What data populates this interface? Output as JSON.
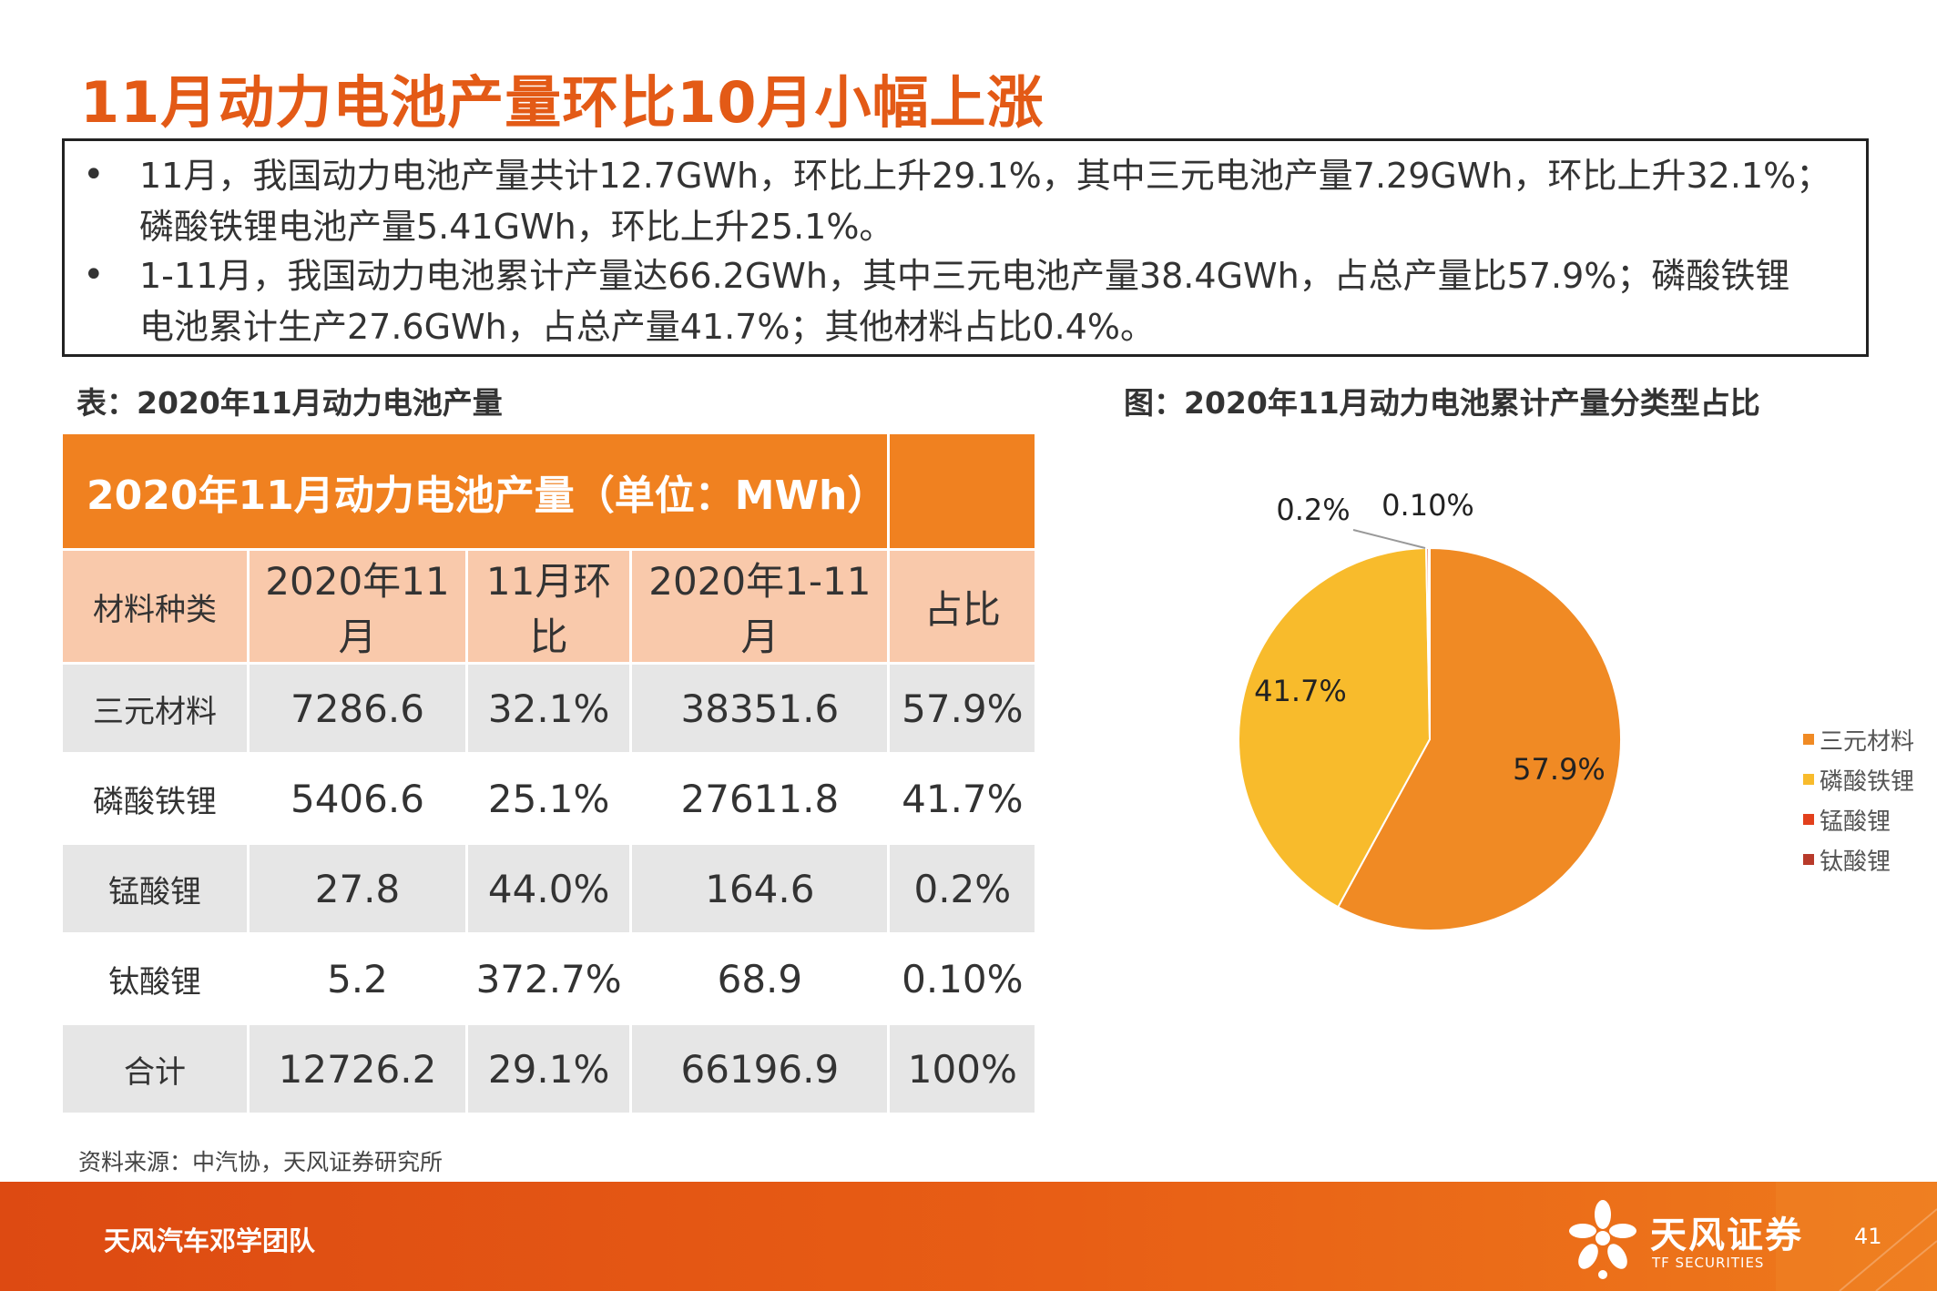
{
  "title": "11月动力电池产量环比10月小幅上涨",
  "summary": {
    "bullet_symbol": "•",
    "items": [
      {
        "line1": "11月，我国动力电池产量共计12.7GWh，环比上升29.1%，其中三元电池产量7.29GWh，环比上升32.1%；",
        "line2": "磷酸铁锂电池产量5.41GWh，环比上升25.1%。"
      },
      {
        "line1": "1-11月，我国动力电池累计产量达66.2GWh，其中三元电池产量38.4GWh，占总产量比57.9%；磷酸铁锂",
        "line2": "电池累计生产27.6GWh，占总产量41.7%；其他材料占比0.4%。"
      }
    ]
  },
  "table_caption": "表：2020年11月动力电池产量",
  "chart_caption": "图：2020年11月动力电池累计产量分类型占比",
  "table": {
    "title": "2020年11月动力电池产量（单位：MWh）",
    "headers": [
      "材料种类",
      "2020年11月",
      "11月环比",
      "2020年1-11月",
      "占比"
    ],
    "rows": [
      [
        "三元材料",
        "7286.6",
        "32.1%",
        "38351.6",
        "57.9%"
      ],
      [
        "磷酸铁锂",
        "5406.6",
        "25.1%",
        "27611.8",
        "41.7%"
      ],
      [
        "锰酸锂",
        "27.8",
        "44.0%",
        "164.6",
        "0.2%"
      ],
      [
        "钛酸锂",
        "5.2",
        "372.7%",
        "68.9",
        "0.10%"
      ],
      [
        "合计",
        "12726.2",
        "29.1%",
        "66196.9",
        "100%"
      ]
    ]
  },
  "chart_data": {
    "type": "pie",
    "title": "",
    "slices": [
      {
        "name": "三元材料",
        "value": 57.9,
        "label": "57.9%",
        "color": "#f08a24"
      },
      {
        "name": "磷酸铁锂",
        "value": 41.7,
        "label": "41.7%",
        "color": "#f8bb2c"
      },
      {
        "name": "锰酸锂",
        "value": 0.2,
        "label": "0.2%",
        "color": "#e2401c"
      },
      {
        "name": "钛酸锂",
        "value": 0.1,
        "label": "0.10%",
        "color": "#b83a2a"
      }
    ],
    "legend_position": "right"
  },
  "source": "资料来源：中汽协，天风证券研究所",
  "footer": {
    "team": "天风汽车邓学团队",
    "brand": "天风证券",
    "brand_en": "TF SECURITIES",
    "page": "41",
    "accent": "#e85e15"
  }
}
